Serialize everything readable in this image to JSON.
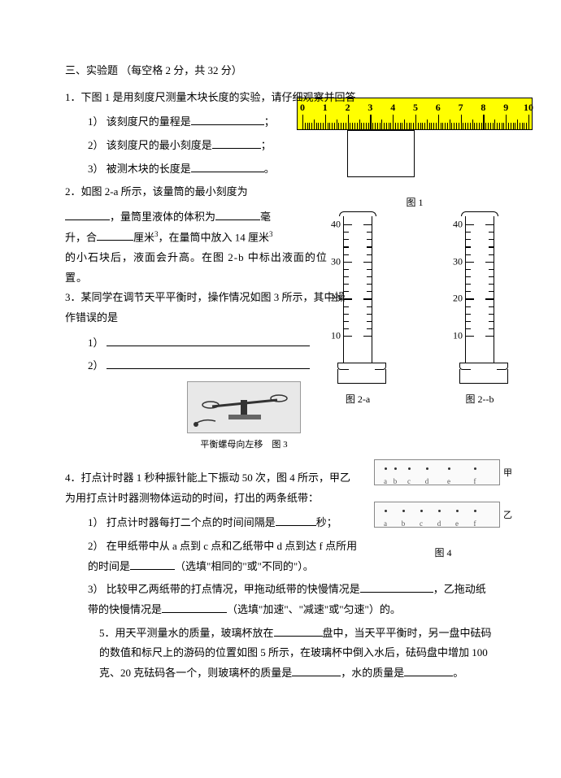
{
  "section_title": "三、实验题 （每空格 2 分，共 32 分）",
  "q1": {
    "stem": "1．下图 1 是用刻度尺测量木块长度的实验，请仔细观察并回答",
    "s1": "1）  该刻度尺的量程是",
    "s1_tail": "；",
    "s2": "2）  该刻度尺的最小刻度是",
    "s2_tail": "；",
    "s3": "3）  被测木块的长度是",
    "s3_tail": "。",
    "fig_label": "图 1",
    "ruler": {
      "bg": "#ffff00",
      "min": 0,
      "max": 10,
      "block_from": 2,
      "block_to": 5
    }
  },
  "q2": {
    "stem_a": "2．如图 2-a 所示，该量筒的最小刻度为",
    "stem_b": "，量筒里液体的体积为",
    "stem_b_tail": "毫",
    "stem_c_pre": "升，合",
    "stem_c_mid": "厘米",
    "stem_c_tail": "，在量筒中放入 14 厘米",
    "stem_d": "的小石块后，液面会升高。在图 2-b 中标出液面的位置。",
    "fig_a": "图 2-a",
    "fig_b": "图 2--b",
    "scale": {
      "max": 40,
      "step": 10,
      "labels": [
        "40",
        "30",
        "20",
        "10"
      ]
    }
  },
  "q3": {
    "stem": "3．某同学在调节天平平衡时，操作情况如图 3 所示，其中操作错误的是",
    "s1": "1）",
    "s2": "2）",
    "caption": "平衡螺母向左移",
    "fig": "图 3"
  },
  "q4": {
    "stem": "4．打点计时器 1 秒种振针能上下振动 50 次，图 4 所示，甲乙为用打点计时器测物体运动的时间，打出的两条纸带：",
    "s1_a": "1）  打点计时器每打二个点的时间间隔是",
    "s1_b": "秒；",
    "s2_a": "2）  在甲纸带中从 a 点到 c 点和乙纸带中 d 点到达 f 点所用的时间是",
    "s2_b": "（选填\"相同的\"或\"不同的\"）。",
    "s3_a": "3）  比较甲乙两纸带的打点情况，甲拖动纸带的快慢情况是",
    "s3_b": "，乙拖动纸带的快慢情况是",
    "s3_c": "（选填\"加速\"、\"减速\"或\"匀速\"）的。",
    "fig": "图 4",
    "tape_jia_label": "甲",
    "tape_yi_label": "乙",
    "letters_jia": [
      "a",
      "b",
      "c",
      "d",
      "e",
      "f"
    ],
    "letters_yi": [
      "a",
      "b",
      "c",
      "d",
      "e",
      "f"
    ]
  },
  "q5": {
    "a": "5．用天平测量水的质量，玻璃杯放在",
    "b": "盘中，当天平平衡时，另一盘中砝码的数值和标尺上的游码的位置如图 5 所示，在玻璃杯中倒入水后，砝码盘中增加 100 克、20 克砝码各一个，则玻璃杯的质量是",
    "c": "，水的质量是",
    "d": "。"
  }
}
